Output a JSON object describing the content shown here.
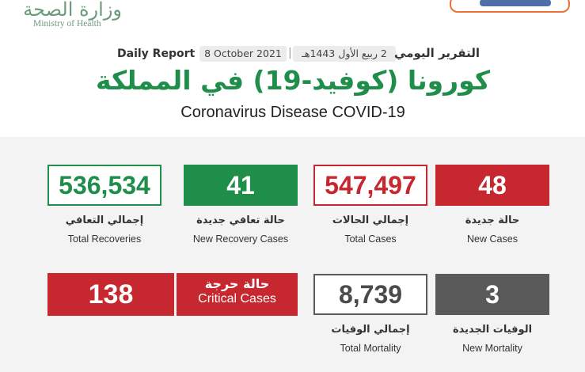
{
  "header": {
    "logo_ar": "وزارة الصحة",
    "logo_en": "Ministry of Health",
    "report_en": "Daily Report",
    "date_gregorian": "8 October 2021",
    "separator": "|",
    "date_hijri": "2 ربيع الأول 1443هـ",
    "report_ar": "التقرير اليومي",
    "title_ar": "كورونا (كوفيد-19) في المملكة",
    "title_en": "Coronavirus Disease COVID-19"
  },
  "stats": {
    "new_cases": {
      "value": "48",
      "label_ar": "حالة جديدة",
      "label_en": "New Cases"
    },
    "total_cases": {
      "value": "547,497",
      "label_ar": "إجمالي الحالات",
      "label_en": "Total Cases"
    },
    "new_recovery": {
      "value": "41",
      "label_ar": "حالة تعافي جديدة",
      "label_en": "New Recovery Cases"
    },
    "total_recoveries": {
      "value": "536,534",
      "label_ar": "إجمالي التعافي",
      "label_en": "Total Recoveries"
    },
    "new_mortality": {
      "value": "3",
      "label_ar": "الوفيات الجديدة",
      "label_en": "New Mortality"
    },
    "total_mortality": {
      "value": "8,739",
      "label_ar": "إجمالي الوفيات",
      "label_en": "Total Mortality"
    },
    "critical": {
      "value": "138",
      "label_ar": "حالة حرجة",
      "label_en": "Critical Cases"
    }
  },
  "colors": {
    "green": "#1f8e4b",
    "red": "#c7282f",
    "dark": "#595959",
    "logo_green": "#6d9a7b",
    "panel_bg": "#f3f3f3"
  }
}
